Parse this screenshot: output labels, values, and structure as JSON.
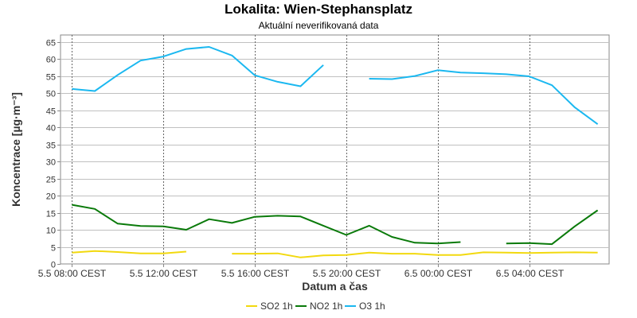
{
  "chart_data": {
    "type": "line",
    "title": "Lokalita: Wien-Stephansplatz",
    "subtitle": "Aktuální neverifikovaná data",
    "xlabel": "Datum a čas",
    "ylabel": "Koncentrace [µg·m⁻³]",
    "ylim": [
      0,
      67
    ],
    "yticks": [
      0,
      5,
      10,
      15,
      20,
      25,
      30,
      35,
      40,
      45,
      50,
      55,
      60,
      65
    ],
    "xlim": [
      -0.5,
      23.5
    ],
    "x_ticks": [
      {
        "x": 0,
        "label": "5.5 08:00 CEST"
      },
      {
        "x": 4,
        "label": "5.5 12:00 CEST"
      },
      {
        "x": 8,
        "label": "5.5 16:00 CEST"
      },
      {
        "x": 12,
        "label": "5.5 20:00 CEST"
      },
      {
        "x": 16,
        "label": "6.5 00:00 CEST"
      },
      {
        "x": 20,
        "label": "6.5 04:00 CEST"
      }
    ],
    "grid": true,
    "legend_position": "bottom",
    "series": [
      {
        "name": "SO2 1h",
        "color": "#f2d90f",
        "values": [
          3.3,
          3.8,
          3.5,
          3.1,
          3.1,
          3.6,
          null,
          3.0,
          3.0,
          3.1,
          1.9,
          2.5,
          2.6,
          3.3,
          3.0,
          3.0,
          2.6,
          2.6,
          3.4,
          3.3,
          3.2,
          3.3,
          3.4,
          3.3
        ]
      },
      {
        "name": "NO2 1h",
        "color": "#0a7a0a",
        "values": [
          17.3,
          16.1,
          11.8,
          11.1,
          11.0,
          10.0,
          13.1,
          12.0,
          13.8,
          14.1,
          13.9,
          11.2,
          8.5,
          11.2,
          7.9,
          6.2,
          6.0,
          6.4,
          null,
          6.0,
          6.1,
          5.8,
          11.0,
          15.7
        ]
      },
      {
        "name": "O3 1h",
        "color": "#1bb8f0",
        "values": [
          51.2,
          50.6,
          55.3,
          59.5,
          60.7,
          62.9,
          63.5,
          61.0,
          55.2,
          53.3,
          52.0,
          58.2,
          null,
          54.2,
          54.1,
          55.0,
          56.7,
          56.0,
          55.8,
          55.5,
          54.9,
          52.3,
          45.8,
          40.9
        ]
      }
    ]
  }
}
